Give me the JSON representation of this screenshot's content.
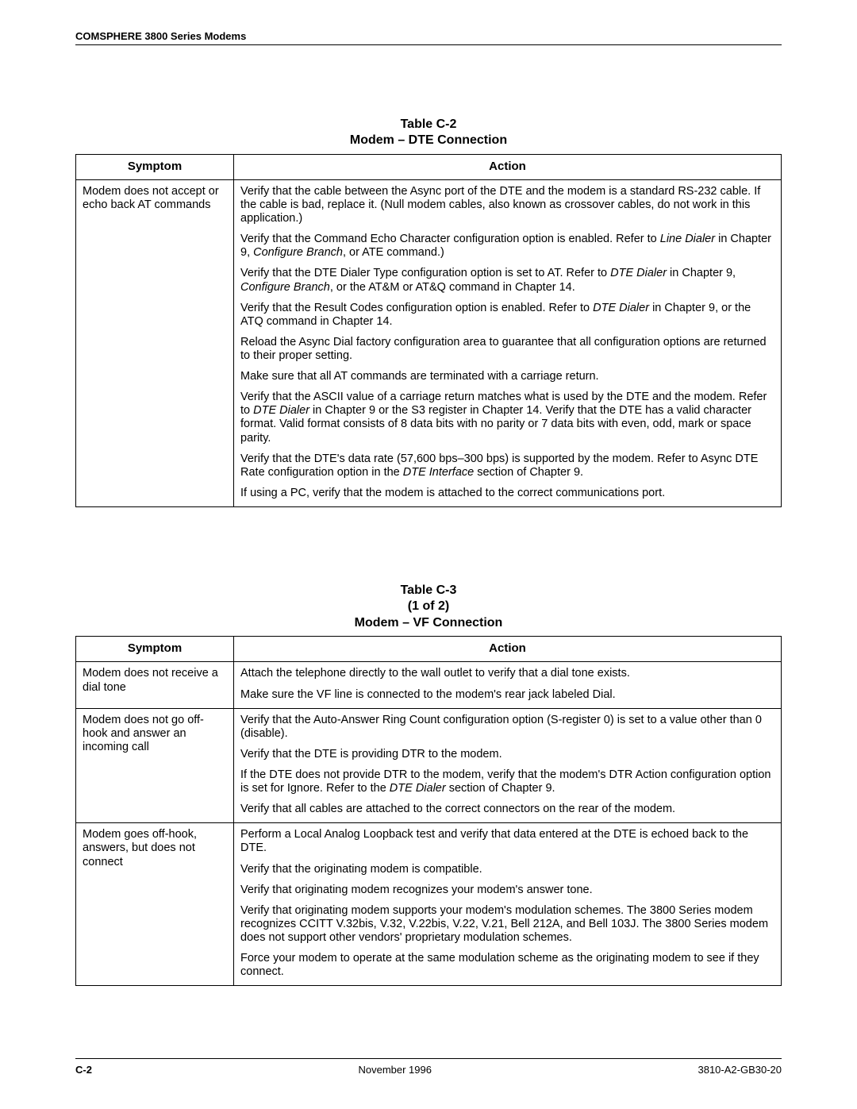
{
  "header": {
    "running": "COMSPHERE 3800 Series Modems"
  },
  "tableC2": {
    "caption_line1": "Table C-2",
    "caption_line2": "Modem – DTE Connection",
    "columns": {
      "symptom": "Symptom",
      "action": "Action"
    },
    "rows": [
      {
        "symptom": "Modem does not accept or echo back AT commands",
        "actions": [
          "Verify that the cable between the Async port of the DTE and the modem is a standard RS-232 cable. If the cable is bad, replace it. (Null modem cables, also known as crossover cables, do not work in this application.)",
          "Verify that the Command Echo Character configuration option is enabled. Refer to <em class=\"ital\">Line Dialer</em> in Chapter 9, <em class=\"ital\">Configure Branch</em>, or ATE command.)",
          "Verify that the DTE Dialer Type configuration option is set to AT. Refer to <em class=\"ital\">DTE Dialer</em> in Chapter 9, <em class=\"ital\">Configure Branch</em>, or the AT&M or AT&Q command in Chapter 14.",
          "Verify that the Result Codes configuration option is enabled. Refer to <em class=\"ital\">DTE Dialer</em> in Chapter 9, or the ATQ command in Chapter 14.",
          "Reload the Async Dial factory configuration area to guarantee that all configuration options are returned to their proper setting.",
          "Make sure that all AT commands are terminated with a carriage return.",
          "Verify that the ASCII value of a carriage return matches what is used by the DTE and the modem. Refer to <em class=\"ital\">DTE Dialer</em> in Chapter 9 or the S3 register in Chapter 14. Verify that the DTE has a valid character format. Valid format consists of 8 data bits with no parity or 7 data bits with even, odd, mark or space parity.",
          "Verify that the DTE's data rate (57,600 bps–300 bps) is supported by the modem. Refer to Async DTE Rate configuration option in the <em class=\"ital\">DTE Interface</em> section of Chapter 9.",
          "If using a PC, verify that the modem is attached to the correct communications port."
        ]
      }
    ]
  },
  "tableC3": {
    "caption_line1": "Table C-3",
    "caption_line2": "(1 of 2)",
    "caption_line3": "Modem – VF Connection",
    "columns": {
      "symptom": "Symptom",
      "action": "Action"
    },
    "rows": [
      {
        "symptom": "Modem does not receive a dial tone",
        "actions": [
          "Attach the telephone directly to the wall outlet to verify that a dial tone exists.",
          "Make sure the VF line is connected to the modem's rear jack labeled Dial."
        ]
      },
      {
        "symptom": "Modem does not go off-hook and answer an incoming call",
        "actions": [
          "Verify that the Auto-Answer Ring Count configuration option (S-register 0) is set to a value other than 0 (disable).",
          "Verify that the DTE is providing DTR to the modem.",
          "If the DTE does not provide DTR to the modem, verify that the modem's DTR Action configuration option is set for Ignore. Refer to the <em class=\"ital\">DTE Dialer</em> section of Chapter 9.",
          "Verify that all cables are attached to the correct connectors on the rear of the modem."
        ]
      },
      {
        "symptom": "Modem goes off-hook, answers, but does not connect",
        "actions": [
          "Perform a Local Analog Loopback test and verify that data entered at the DTE is echoed back to the DTE.",
          "Verify that the originating modem is compatible.",
          "Verify that originating modem recognizes your modem's answer tone.",
          "Verify that originating modem supports your modem's modulation schemes. The 3800 Series modem recognizes CCITT V.32bis, V.32, V.22bis, V.22, V.21, Bell 212A, and Bell 103J. The 3800 Series modem does not support other vendors' proprietary modulation schemes.",
          "Force your modem to operate at the same modulation scheme as the originating modem to see if they connect."
        ]
      }
    ]
  },
  "footer": {
    "page": "C-2",
    "date": "November 1996",
    "docnum": "3810-A2-GB30-20"
  }
}
